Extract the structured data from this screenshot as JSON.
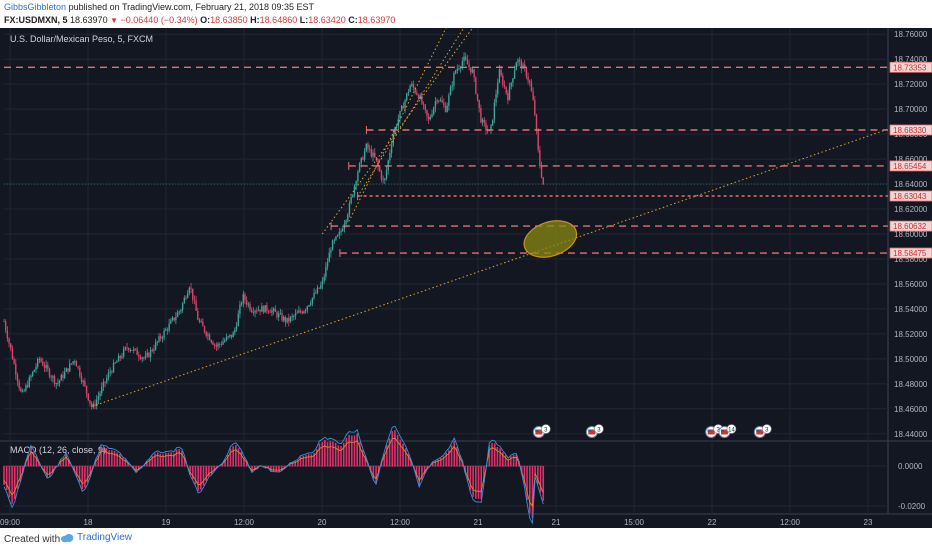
{
  "header": {
    "author": "GibbsGibbleton",
    "published_text": "published on TradingView.com, February 21, 2018 09:35 EST",
    "symbol": "FX:USDMXN, 5",
    "last": "18.63970",
    "change": "−0.06440 (−0.34%)",
    "o_label": "O:",
    "o_value": "18.63850",
    "h_label": "H:",
    "h_value": "18.64860",
    "l_label": "L:",
    "l_value": "18.63420",
    "c_label": "C:",
    "c_value": "18.63970"
  },
  "footer": {
    "created_with": "Created with",
    "brand": "TradingView"
  },
  "colors": {
    "background": "#131722",
    "grid": "#1f2633",
    "candle_up": "#3fa39a",
    "candle_down": "#d7476b",
    "level_line": "#e8706e",
    "trend_line": "#e0a32a",
    "ellipse_fill": "#8a8a12",
    "ellipse_stroke": "#c7931f",
    "macd_line": "#3b8fd6",
    "signal_line": "#e58a3a",
    "histogram": "#e0306a"
  },
  "chart_data": {
    "type": "candlestick",
    "title": "U.S. Dollar/Mexican Peso, 5, FXCM",
    "x_ticks": [
      "09:00",
      "18",
      "19",
      "12:00",
      "20",
      "12:00",
      "21",
      "21",
      "15:00",
      "22",
      "12:00",
      "23"
    ],
    "ylim": [
      18.435,
      18.765
    ],
    "y_ticks": [
      "18.76000",
      "18.74000",
      "18.72000",
      "18.70000",
      "18.68000",
      "18.66000",
      "18.64000",
      "18.62000",
      "18.60000",
      "18.58000",
      "18.56000",
      "18.54000",
      "18.52000",
      "18.50000",
      "18.48000",
      "18.46000",
      "18.44000"
    ],
    "y_tick_values": [
      18.76,
      18.74,
      18.72,
      18.7,
      18.68,
      18.66,
      18.64,
      18.62,
      18.6,
      18.58,
      18.56,
      18.54,
      18.52,
      18.5,
      18.48,
      18.46,
      18.44
    ],
    "levels": [
      {
        "value": 18.73353,
        "label": "18.73353"
      },
      {
        "value": 18.6833,
        "label": "18.68330"
      },
      {
        "value": 18.65454,
        "label": "18.65454"
      },
      {
        "value": 18.63043,
        "label": "18.63043"
      },
      {
        "value": 18.60632,
        "label": "18.60632"
      },
      {
        "value": 18.58475,
        "label": "18.58475"
      }
    ],
    "price_path": [
      [
        0,
        18.53
      ],
      [
        0.02,
        18.47
      ],
      [
        0.04,
        18.5
      ],
      [
        0.06,
        18.48
      ],
      [
        0.08,
        18.5
      ],
      [
        0.1,
        18.46
      ],
      [
        0.12,
        18.49
      ],
      [
        0.14,
        18.51
      ],
      [
        0.16,
        18.5
      ],
      [
        0.18,
        18.52
      ],
      [
        0.2,
        18.54
      ],
      [
        0.21,
        18.56
      ],
      [
        0.22,
        18.53
      ],
      [
        0.24,
        18.51
      ],
      [
        0.26,
        18.52
      ],
      [
        0.27,
        18.55
      ],
      [
        0.28,
        18.54
      ],
      [
        0.3,
        18.54
      ],
      [
        0.32,
        18.53
      ],
      [
        0.34,
        18.54
      ],
      [
        0.36,
        18.56
      ],
      [
        0.37,
        18.59
      ],
      [
        0.38,
        18.6
      ],
      [
        0.39,
        18.62
      ],
      [
        0.4,
        18.65
      ],
      [
        0.41,
        18.67
      ],
      [
        0.42,
        18.66
      ],
      [
        0.43,
        18.64
      ],
      [
        0.44,
        18.68
      ],
      [
        0.45,
        18.7
      ],
      [
        0.46,
        18.72
      ],
      [
        0.47,
        18.71
      ],
      [
        0.48,
        18.69
      ],
      [
        0.49,
        18.71
      ],
      [
        0.5,
        18.7
      ],
      [
        0.51,
        18.73
      ],
      [
        0.52,
        18.74
      ],
      [
        0.53,
        18.73
      ],
      [
        0.54,
        18.69
      ],
      [
        0.55,
        18.68
      ],
      [
        0.56,
        18.73
      ],
      [
        0.57,
        18.71
      ],
      [
        0.58,
        18.74
      ],
      [
        0.59,
        18.73
      ],
      [
        0.595,
        18.72
      ],
      [
        0.6,
        18.7
      ],
      [
        0.605,
        18.66
      ],
      [
        0.61,
        18.64
      ]
    ],
    "trend_lines": [
      {
        "name": "rising support",
        "from": [
          0.1,
          18.462
        ],
        "to": [
          1.0,
          18.684
        ]
      },
      {
        "name": "channel upper",
        "from": [
          0.36,
          18.6
        ],
        "to": [
          0.53,
          18.765
        ]
      },
      {
        "name": "channel middle",
        "from": [
          0.39,
          18.61
        ],
        "to": [
          0.5,
          18.765
        ]
      },
      {
        "name": "channel lower",
        "from": [
          0.4,
          18.63
        ],
        "to": [
          0.52,
          18.765
        ]
      }
    ],
    "highlight_zone": {
      "x": 0.618,
      "y": 18.596,
      "label": ""
    },
    "event_flags": [
      {
        "x": 0.605,
        "count": "3"
      },
      {
        "x": 0.665,
        "count": "3"
      },
      {
        "x": 0.8,
        "count": "3"
      },
      {
        "x": 0.815,
        "count": "14"
      },
      {
        "x": 0.855,
        "count": "3"
      }
    ],
    "macd": {
      "label": "MACD (12, 26, close, 9)",
      "ylim": [
        -0.024,
        0.012
      ],
      "y_ticks": [
        "0.0000",
        "-0.0200"
      ],
      "y_tick_values": [
        0.0,
        -0.02
      ]
    }
  }
}
